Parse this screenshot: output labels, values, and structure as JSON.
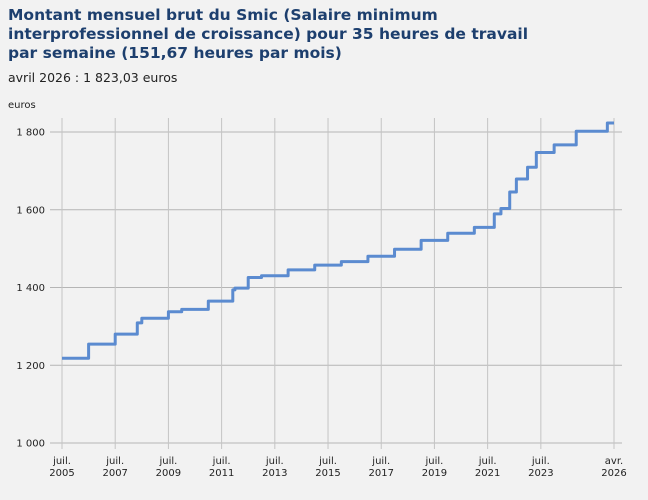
{
  "chart_data": {
    "type": "line",
    "title": "Montant mensuel brut du Smic (Salaire minimum interprofessionnel de croissance) pour 35 heures de travail par semaine (151,67 heures par mois)",
    "subtitle": "avril 2026 : 1 823,03 euros",
    "ylabel": "euros",
    "xlabel": "",
    "ylim": [
      1000,
      1800
    ],
    "xlim": [
      2005.5,
      2026.25
    ],
    "grid": true,
    "line_color": "#5b8bd0",
    "y_ticks": [
      {
        "value": 1000,
        "label": "1 000"
      },
      {
        "value": 1200,
        "label": "1 200"
      },
      {
        "value": 1400,
        "label": "1 400"
      },
      {
        "value": 1600,
        "label": "1 600"
      },
      {
        "value": 1800,
        "label": "1 800"
      }
    ],
    "x_ticks": [
      {
        "value": 2005.5,
        "l1": "juil.",
        "l2": "2005"
      },
      {
        "value": 2007.5,
        "l1": "juil.",
        "l2": "2007"
      },
      {
        "value": 2009.5,
        "l1": "juil.",
        "l2": "2009"
      },
      {
        "value": 2011.5,
        "l1": "juil.",
        "l2": "2011"
      },
      {
        "value": 2013.5,
        "l1": "juil.",
        "l2": "2013"
      },
      {
        "value": 2015.5,
        "l1": "juil.",
        "l2": "2015"
      },
      {
        "value": 2017.5,
        "l1": "juil.",
        "l2": "2017"
      },
      {
        "value": 2019.5,
        "l1": "juil.",
        "l2": "2019"
      },
      {
        "value": 2021.5,
        "l1": "juil.",
        "l2": "2021"
      },
      {
        "value": 2023.5,
        "l1": "juil.",
        "l2": "2023"
      },
      {
        "value": 2026.25,
        "l1": "avr.",
        "l2": "2026"
      }
    ],
    "series": [
      {
        "name": "Smic mensuel brut",
        "step": true,
        "end": 2026.25,
        "points": [
          [
            2005.5,
            1217.88
          ],
          [
            2006.5,
            1254.28
          ],
          [
            2007.5,
            1280.07
          ],
          [
            2008.33,
            1308.88
          ],
          [
            2008.5,
            1321.02
          ],
          [
            2009.5,
            1337.7
          ],
          [
            2010.0,
            1343.77
          ],
          [
            2011.0,
            1365.0
          ],
          [
            2011.92,
            1393.82
          ],
          [
            2012.0,
            1398.37
          ],
          [
            2012.5,
            1425.67
          ],
          [
            2013.0,
            1430.22
          ],
          [
            2014.0,
            1445.38
          ],
          [
            2015.0,
            1457.52
          ],
          [
            2016.0,
            1466.62
          ],
          [
            2017.0,
            1480.27
          ],
          [
            2018.0,
            1498.47
          ],
          [
            2019.0,
            1521.22
          ],
          [
            2020.0,
            1539.42
          ],
          [
            2021.0,
            1554.58
          ],
          [
            2021.75,
            1589.47
          ],
          [
            2022.0,
            1603.12
          ],
          [
            2022.33,
            1645.58
          ],
          [
            2022.58,
            1678.95
          ],
          [
            2023.0,
            1709.28
          ],
          [
            2023.33,
            1747.2
          ],
          [
            2024.0,
            1766.92
          ],
          [
            2024.83,
            1801.8
          ],
          [
            2026.0,
            1823.03
          ]
        ]
      }
    ]
  }
}
